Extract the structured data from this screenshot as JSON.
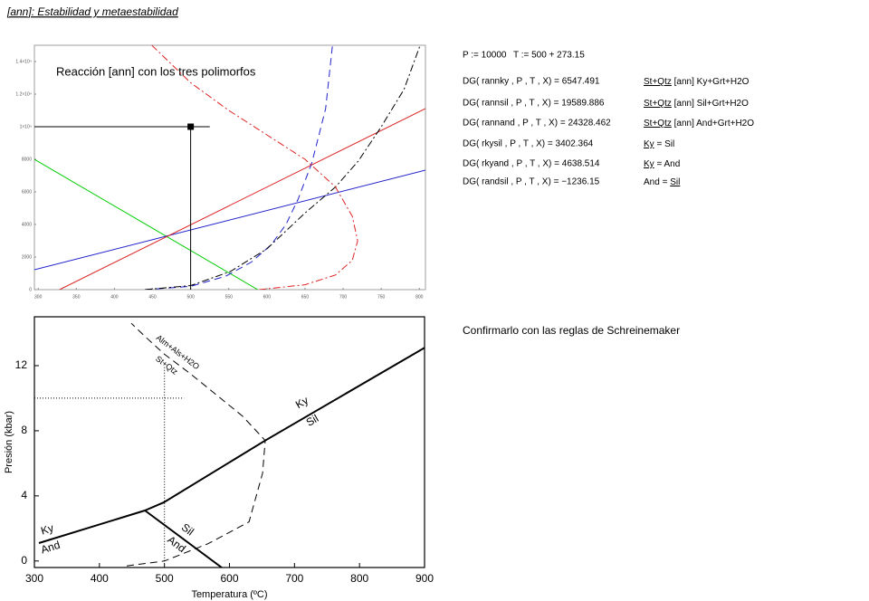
{
  "header": {
    "title": "[ann]: Estabilidad y metaestabilidad"
  },
  "chart_data": [
    {
      "type": "line",
      "annotation": "Reacción [ann] con los tres polimorfos",
      "xlim": [
        295,
        808
      ],
      "ylim": [
        0,
        15000
      ],
      "xticks": [
        300,
        350,
        400,
        450,
        500,
        550,
        600,
        650,
        700,
        750,
        800
      ],
      "yticks": [
        0,
        2000,
        4000,
        6000,
        8000,
        {
          "value": 10000,
          "label": "1×10⁴"
        },
        {
          "value": 12000,
          "label": "1.2×10⁴"
        },
        {
          "value": 14000,
          "label": "1.4×10⁴"
        }
      ],
      "series": [
        {
          "color": "#00cc00",
          "x": [
            295,
            588
          ],
          "values": [
            8000,
            0
          ]
        },
        {
          "color": "#2222cc",
          "x": [
            295,
            808
          ],
          "values": [
            1222,
            7333
          ]
        },
        {
          "color": "#dd2222",
          "x": [
            328,
            808
          ],
          "values": [
            0,
            11111
          ]
        },
        {
          "color": "#2222cc",
          "dash": "dashed",
          "x": [
            440,
            500,
            546,
            580,
            606,
            625,
            641,
            659,
            677,
            686
          ],
          "values": [
            0,
            200,
            830,
            1700,
            2780,
            4000,
            5560,
            7780,
            11100,
            15000
          ]
        },
        {
          "color": "#000000",
          "dash": "dashdot",
          "x": [
            440,
            500,
            552,
            600,
            650,
            690,
            720,
            750,
            780,
            801
          ],
          "values": [
            0,
            250,
            1110,
            2500,
            4700,
            6300,
            7900,
            10000,
            12300,
            15000
          ]
        },
        {
          "color": "#dd2222",
          "dash": "dashdot",
          "x": [
            449,
            500,
            550,
            600,
            650,
            690,
            712,
            719,
            712,
            690,
            650,
            590
          ],
          "values": [
            15000,
            12700,
            11000,
            9500,
            8000,
            6300,
            4500,
            3000,
            1800,
            900,
            300,
            0
          ]
        },
        {
          "color": "#000000",
          "x": [
            295,
            525
          ],
          "values": [
            10000,
            10000
          ]
        },
        {
          "color": "#000000",
          "x": [
            500,
            500
          ],
          "values": [
            10000,
            0
          ]
        }
      ],
      "points": {
        "color": "#000000",
        "x": [
          500
        ],
        "values": [
          10000
        ]
      }
    },
    {
      "type": "line",
      "xlabel": "Temperatura (ºC)",
      "ylabel": "Presión (kbar)",
      "xlim": [
        300,
        900
      ],
      "ylim": [
        -0.4,
        15
      ],
      "xticks": [
        300,
        400,
        500,
        600,
        700,
        800,
        900
      ],
      "yticks": [
        0,
        4,
        8,
        12
      ],
      "series": [
        {
          "color": "#000000",
          "width": 2,
          "x": [
            307,
            470
          ],
          "values": [
            1.1,
            3.1
          ]
        },
        {
          "color": "#000000",
          "width": 2,
          "x": [
            470,
            588
          ],
          "values": [
            3.1,
            -0.4
          ]
        },
        {
          "color": "#000000",
          "width": 2,
          "x": [
            470,
            499,
            655,
            900
          ],
          "values": [
            3.1,
            3.6,
            7.4,
            13.1
          ]
        },
        {
          "color": "#000000",
          "dash": "dashed",
          "x": [
            442,
            500,
            567,
            630,
            651,
            655,
            620,
            580,
            540,
            500,
            470,
            449
          ],
          "values": [
            -0.3,
            0,
            1.06,
            2.4,
            5.4,
            7.4,
            8.9,
            10.2,
            11.5,
            12.7,
            13.8,
            14.6
          ]
        },
        {
          "color": "#000000",
          "dash": "dotted",
          "x": [
            300,
            530
          ],
          "values": [
            10,
            10
          ]
        },
        {
          "color": "#000000",
          "dash": "dotted",
          "x": [
            500,
            500
          ],
          "values": [
            0,
            12
          ]
        }
      ],
      "annotations": [
        "Ky",
        "And",
        "Sil",
        "And",
        "Ky",
        "Sil",
        "Alm+Als+H2O",
        "St+Qtz"
      ]
    }
  ],
  "equations": {
    "inputs": [
      "P := 10000",
      "T := 500 + 273.15"
    ],
    "rows": [
      {
        "expr": "DG( rannky , P , T , X) = 6547.491",
        "reaction": [
          {
            "text": "St+Qtz",
            "underline": true
          },
          {
            "text": " [ann] Ky+Grt+H2O"
          }
        ]
      },
      {
        "expr": "DG( rannsil , P , T , X) = 19589.886",
        "reaction": [
          {
            "text": "St+Qtz",
            "underline": true
          },
          {
            "text": " [ann] Sil+Grt+H2O"
          }
        ]
      },
      {
        "expr": "DG( rannand , P , T , X) = 24328.462",
        "reaction": [
          {
            "text": "St+Qtz",
            "underline": true
          },
          {
            "text": " [ann] And+Grt+H2O"
          }
        ]
      },
      {
        "expr": "DG( rkysil , P , T , X) = 3402.364",
        "reaction": [
          {
            "text": "Ky",
            "underline": true
          },
          {
            "text": " = Sil"
          }
        ]
      },
      {
        "expr": "DG( rkyand , P , T , X) = 4638.514",
        "reaction": [
          {
            "text": "Ky",
            "underline": true
          },
          {
            "text": " = And"
          }
        ]
      },
      {
        "expr": "DG( randsil , P , T , X) = −1236.15",
        "reaction": [
          {
            "text": "And = "
          },
          {
            "text": "Sil",
            "underline": true
          }
        ]
      }
    ]
  },
  "note": "Confirmarlo con las reglas de Schreinemaker"
}
